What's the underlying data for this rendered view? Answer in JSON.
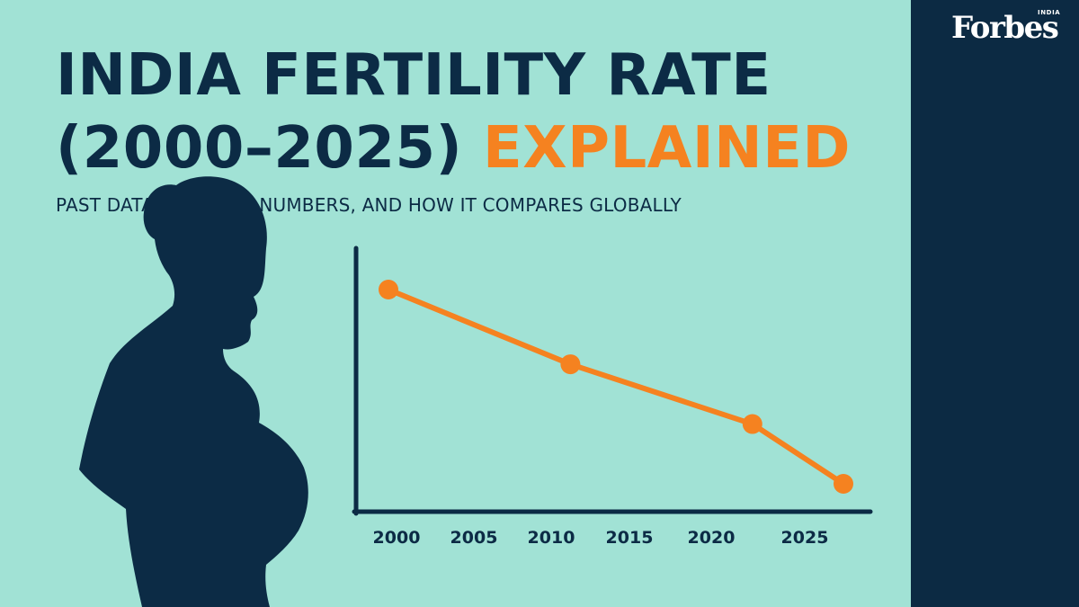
{
  "header": {
    "title_line1": "INDIA FERTILITY RATE",
    "title_line2_prefix": "(2000–2025)",
    "title_line2_accent": "EXPLAINED",
    "subtitle": "PAST DATA, CURRENT NUMBERS, AND HOW IT COMPARES GLOBALLY"
  },
  "brand": {
    "name": "Forbes",
    "edition": "INDIA"
  },
  "colors": {
    "background": "#a1e2d5",
    "ink": "#0c2b45",
    "accent": "#f58220",
    "panel": "#0c2a43"
  },
  "illustration": {
    "icon": "pregnant-woman-silhouette-icon"
  },
  "chart_data": {
    "type": "line",
    "categories": [
      "2000",
      "2005",
      "2010",
      "2015",
      "2020",
      "2025"
    ],
    "series": [
      {
        "x": [
          2000,
          2010,
          2020,
          2025
        ],
        "values": [
          3.2,
          2.7,
          2.3,
          1.9
        ]
      }
    ],
    "xlabel": "",
    "ylabel": "",
    "grid": false,
    "legend": "none"
  }
}
